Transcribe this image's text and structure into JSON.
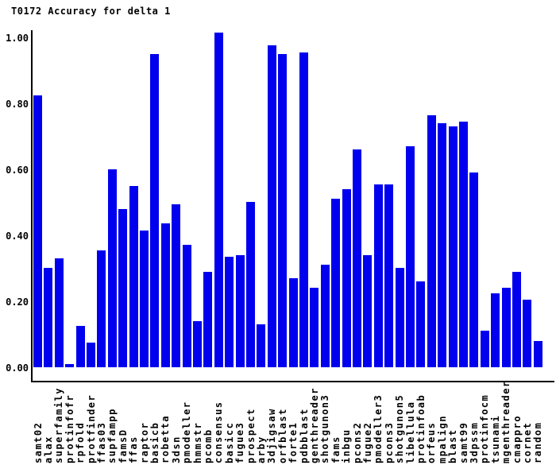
{
  "title": "T0172 Accuracy for delta 1",
  "colors": {
    "bar": "#0000ee",
    "axis": "#000000",
    "text": "#000000",
    "background": "#ffffff"
  },
  "chart_data": {
    "type": "bar",
    "title": "T0172 Accuracy for delta 1",
    "xlabel": "",
    "ylabel": "",
    "ylim": [
      0.0,
      1.0
    ],
    "grid": false,
    "legend": false,
    "yticks": [
      "1.00",
      "0.80",
      "0.60",
      "0.40",
      "0.20",
      "0.00"
    ],
    "categories": [
      "samt02",
      "alax",
      "superfamily",
      "protinfofr",
      "rpfold",
      "protfinder",
      "ffas03",
      "supfampp",
      "famsD",
      "ffas",
      "raptor",
      "basicb",
      "robetta",
      "3dsn",
      "pmodeller",
      "hmmstr",
      "pcomb",
      "consensus",
      "basicc",
      "fugue3",
      "prospect",
      "arby",
      "3djigsaw",
      "orfblast",
      "forte1",
      "pdbblast",
      "genthreader",
      "shotgunon3",
      "fams",
      "inbgu",
      "pcons2",
      "fugue2",
      "pmodeller3",
      "pcons3",
      "shotgunon5",
      "libellula",
      "protinfoab",
      "orfeus",
      "mpalign",
      "blast",
      "samt99",
      "3dpssm",
      "protinfocm",
      "tsunami",
      "mgenthreader",
      "cmappro",
      "cornet",
      "random"
    ],
    "values": [
      0.825,
      0.3,
      0.33,
      0.01,
      0.125,
      0.075,
      0.355,
      0.6,
      0.48,
      0.55,
      0.415,
      0.95,
      0.435,
      0.495,
      0.37,
      0.14,
      0.29,
      1.015,
      0.335,
      0.34,
      0.5,
      0.13,
      0.975,
      0.95,
      0.27,
      0.955,
      0.24,
      0.31,
      0.51,
      0.54,
      0.66,
      0.34,
      0.555,
      0.555,
      0.3,
      0.67,
      0.26,
      0.765,
      0.74,
      0.73,
      0.745,
      0.59,
      0.11,
      0.225,
      0.24,
      0.29,
      0.205,
      0.08
    ]
  }
}
